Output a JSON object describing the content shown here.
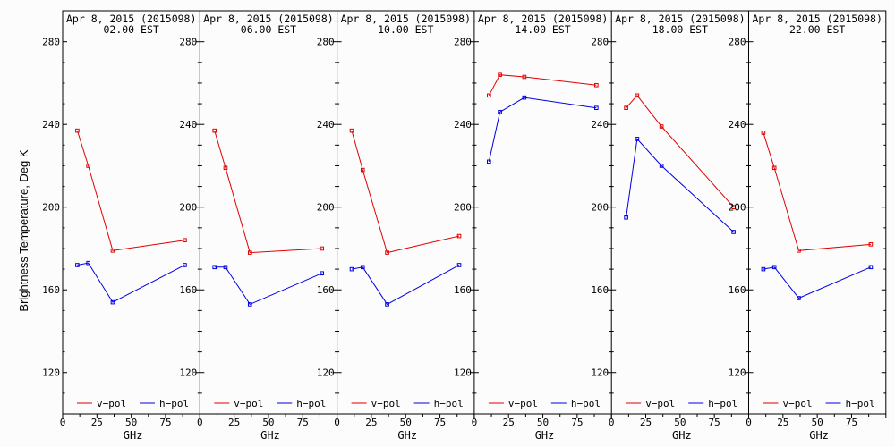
{
  "ylabel": "Brightness Temperature, Deg K",
  "xlabel": "GHz",
  "colors": {
    "v_pol": "#e00000",
    "h_pol": "#0000e0",
    "frame": "#000000",
    "background": "#fcfcfc"
  },
  "chart_data": {
    "type": "line",
    "x": [
      10.7,
      18.7,
      36.5,
      89.0
    ],
    "xlim": [
      0,
      100
    ],
    "ylim": [
      100,
      295
    ],
    "xticks": [
      0,
      25,
      50,
      75,
      100
    ],
    "yticks": [
      120,
      160,
      200,
      240,
      280
    ],
    "legend": {
      "placement": "bottom",
      "labels": [
        "v−pol",
        "h−pol"
      ]
    },
    "panels": [
      {
        "title": "Apr  8, 2015 (2015098)",
        "subtitle": "02.00 EST",
        "series": [
          {
            "name": "v−pol",
            "values": [
              237,
              220,
              179,
              184
            ]
          },
          {
            "name": "h−pol",
            "values": [
              172,
              173,
              154,
              172
            ]
          }
        ]
      },
      {
        "title": "Apr  8, 2015 (2015098)",
        "subtitle": "06.00 EST",
        "series": [
          {
            "name": "v−pol",
            "values": [
              237,
              219,
              178,
              180
            ]
          },
          {
            "name": "h−pol",
            "values": [
              171,
              171,
              153,
              168
            ]
          }
        ]
      },
      {
        "title": "Apr  8, 2015 (2015098)",
        "subtitle": "10.00 EST",
        "series": [
          {
            "name": "v−pol",
            "values": [
              237,
              218,
              178,
              186
            ]
          },
          {
            "name": "h−pol",
            "values": [
              170,
              171,
              153,
              172
            ]
          }
        ]
      },
      {
        "title": "Apr  8, 2015 (2015098)",
        "subtitle": "14.00 EST",
        "series": [
          {
            "name": "v−pol",
            "values": [
              254,
              264,
              263,
              259
            ]
          },
          {
            "name": "h−pol",
            "values": [
              222,
              246,
              253,
              248
            ]
          }
        ]
      },
      {
        "title": "Apr  8, 2015 (2015098)",
        "subtitle": "18.00 EST",
        "series": [
          {
            "name": "v−pol",
            "values": [
              248,
              254,
              239,
              200
            ]
          },
          {
            "name": "h−pol",
            "values": [
              195,
              233,
              220,
              188
            ]
          }
        ]
      },
      {
        "title": "Apr  8, 2015 (2015098)",
        "subtitle": "22.00 EST",
        "series": [
          {
            "name": "v−pol",
            "values": [
              236,
              219,
              179,
              182
            ]
          },
          {
            "name": "h−pol",
            "values": [
              170,
              171,
              156,
              171
            ]
          }
        ]
      }
    ]
  }
}
